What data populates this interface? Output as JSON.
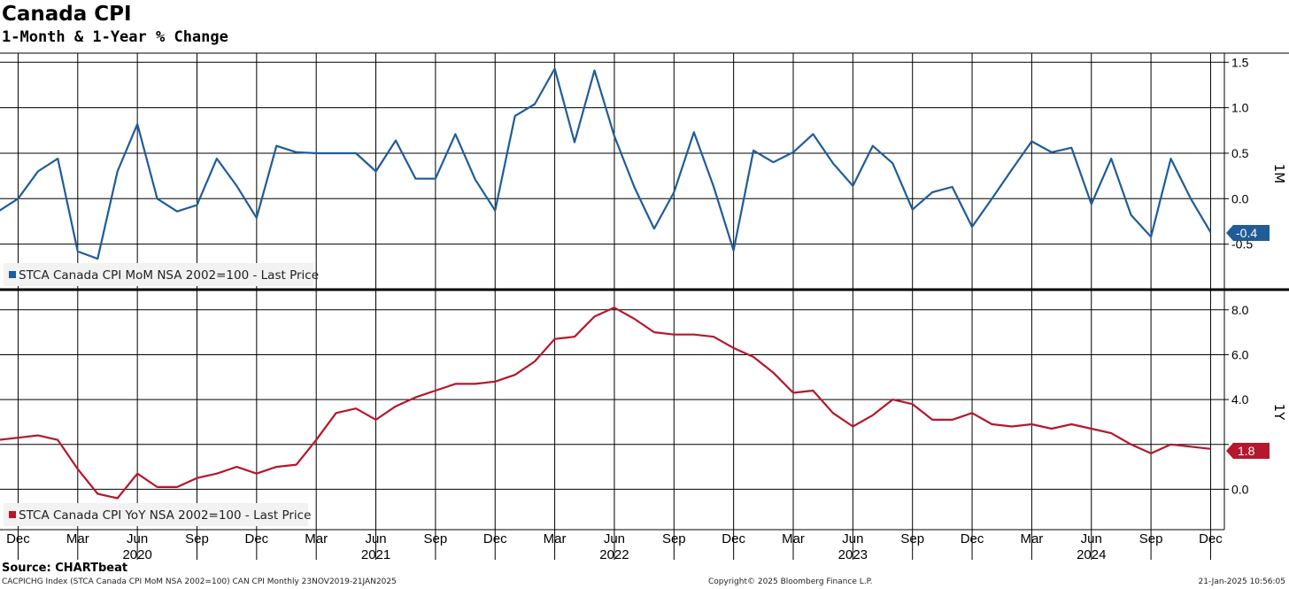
{
  "header": {
    "title": "Canada CPI",
    "subtitle": "1-Month & 1-Year % Change"
  },
  "chart_data": [
    {
      "type": "line",
      "panel": "top",
      "side_label": "1M",
      "legend": "STCA Canada CPI MoM NSA 2002=100 - Last Price",
      "last_value_label": "-0.4",
      "color": "#1f5c99",
      "ylim": [
        -1.0,
        1.6
      ],
      "yticks": [
        "-0.5",
        "0.0",
        "0.5",
        "1.0",
        "1.5"
      ],
      "grid": true,
      "x": [
        "2019-11",
        "2019-12",
        "2020-01",
        "2020-02",
        "2020-03",
        "2020-04",
        "2020-05",
        "2020-06",
        "2020-07",
        "2020-08",
        "2020-09",
        "2020-10",
        "2020-11",
        "2020-12",
        "2021-01",
        "2021-02",
        "2021-03",
        "2021-04",
        "2021-05",
        "2021-06",
        "2021-07",
        "2021-08",
        "2021-09",
        "2021-10",
        "2021-11",
        "2021-12",
        "2022-01",
        "2022-02",
        "2022-03",
        "2022-04",
        "2022-05",
        "2022-06",
        "2022-07",
        "2022-08",
        "2022-09",
        "2022-10",
        "2022-11",
        "2022-12",
        "2023-01",
        "2023-02",
        "2023-03",
        "2023-04",
        "2023-05",
        "2023-06",
        "2023-07",
        "2023-08",
        "2023-09",
        "2023-10",
        "2023-11",
        "2023-12",
        "2024-01",
        "2024-02",
        "2024-03",
        "2024-04",
        "2024-05",
        "2024-06",
        "2024-07",
        "2024-08",
        "2024-09",
        "2024-10",
        "2024-11",
        "2024-12"
      ],
      "values": [
        -0.14,
        0.0,
        0.3,
        0.44,
        -0.58,
        -0.66,
        0.3,
        0.82,
        0.0,
        -0.14,
        -0.07,
        0.44,
        0.14,
        -0.21,
        0.58,
        0.51,
        0.5,
        0.5,
        0.5,
        0.3,
        0.64,
        0.22,
        0.22,
        0.71,
        0.21,
        -0.13,
        0.91,
        1.04,
        1.43,
        0.62,
        1.41,
        0.69,
        0.13,
        -0.33,
        0.07,
        0.73,
        0.13,
        -0.57,
        0.53,
        0.4,
        0.51,
        0.71,
        0.39,
        0.14,
        0.58,
        0.39,
        -0.12,
        0.07,
        0.13,
        -0.31,
        0.0,
        0.32,
        0.63,
        0.51,
        0.56,
        -0.06,
        0.44,
        -0.18,
        -0.42,
        0.44,
        0.0,
        -0.37
      ]
    },
    {
      "type": "line",
      "panel": "bottom",
      "side_label": "1Y",
      "legend": "STCA Canada CPI YoY NSA 2002=100 - Last Price",
      "last_value_label": "1.8",
      "color": "#b5172c",
      "ylim": [
        -1.8,
        8.9
      ],
      "yticks": [
        "0.0",
        "4.0",
        "6.0",
        "8.0"
      ],
      "grid": true,
      "x": [
        "2019-11",
        "2019-12",
        "2020-01",
        "2020-02",
        "2020-03",
        "2020-04",
        "2020-05",
        "2020-06",
        "2020-07",
        "2020-08",
        "2020-09",
        "2020-10",
        "2020-11",
        "2020-12",
        "2021-01",
        "2021-02",
        "2021-03",
        "2021-04",
        "2021-05",
        "2021-06",
        "2021-07",
        "2021-08",
        "2021-09",
        "2021-10",
        "2021-11",
        "2021-12",
        "2022-01",
        "2022-02",
        "2022-03",
        "2022-04",
        "2022-05",
        "2022-06",
        "2022-07",
        "2022-08",
        "2022-09",
        "2022-10",
        "2022-11",
        "2022-12",
        "2023-01",
        "2023-02",
        "2023-03",
        "2023-04",
        "2023-05",
        "2023-06",
        "2023-07",
        "2023-08",
        "2023-09",
        "2023-10",
        "2023-11",
        "2023-12",
        "2024-01",
        "2024-02",
        "2024-03",
        "2024-04",
        "2024-05",
        "2024-06",
        "2024-07",
        "2024-08",
        "2024-09",
        "2024-10",
        "2024-11",
        "2024-12"
      ],
      "values": [
        2.2,
        2.3,
        2.4,
        2.2,
        0.9,
        -0.2,
        -0.4,
        0.7,
        0.1,
        0.1,
        0.5,
        0.7,
        1.0,
        0.7,
        1.0,
        1.1,
        2.2,
        3.4,
        3.6,
        3.1,
        3.7,
        4.1,
        4.4,
        4.7,
        4.7,
        4.8,
        5.1,
        5.7,
        6.7,
        6.8,
        7.7,
        8.1,
        7.6,
        7.0,
        6.9,
        6.9,
        6.8,
        6.3,
        5.9,
        5.2,
        4.3,
        4.4,
        3.4,
        2.8,
        3.3,
        4.0,
        3.8,
        3.1,
        3.1,
        3.4,
        2.9,
        2.8,
        2.9,
        2.7,
        2.9,
        2.7,
        2.5,
        2.0,
        1.6,
        2.0,
        1.9,
        1.8
      ]
    }
  ],
  "x_axis": {
    "month_ticks": [
      {
        "date": "2019-12",
        "label": "Dec"
      },
      {
        "date": "2020-03",
        "label": "Mar"
      },
      {
        "date": "2020-06",
        "label": "Jun"
      },
      {
        "date": "2020-09",
        "label": "Sep"
      },
      {
        "date": "2020-12",
        "label": "Dec"
      },
      {
        "date": "2021-03",
        "label": "Mar"
      },
      {
        "date": "2021-06",
        "label": "Jun"
      },
      {
        "date": "2021-09",
        "label": "Sep"
      },
      {
        "date": "2021-12",
        "label": "Dec"
      },
      {
        "date": "2022-03",
        "label": "Mar"
      },
      {
        "date": "2022-06",
        "label": "Jun"
      },
      {
        "date": "2022-09",
        "label": "Sep"
      },
      {
        "date": "2022-12",
        "label": "Dec"
      },
      {
        "date": "2023-03",
        "label": "Mar"
      },
      {
        "date": "2023-06",
        "label": "Jun"
      },
      {
        "date": "2023-09",
        "label": "Sep"
      },
      {
        "date": "2023-12",
        "label": "Dec"
      },
      {
        "date": "2024-03",
        "label": "Mar"
      },
      {
        "date": "2024-06",
        "label": "Jun"
      },
      {
        "date": "2024-09",
        "label": "Sep"
      },
      {
        "date": "2024-12",
        "label": "Dec"
      }
    ],
    "year_ticks": [
      {
        "date": "2020-06",
        "label": "2020"
      },
      {
        "date": "2021-06",
        "label": "2021"
      },
      {
        "date": "2022-06",
        "label": "2022"
      },
      {
        "date": "2023-06",
        "label": "2023"
      },
      {
        "date": "2024-06",
        "label": "2024"
      }
    ]
  },
  "footer": {
    "source": "Source: CHARTbeat",
    "left": "CACPICHG Index (STCA Canada CPI MoM NSA 2002=100) CAN CPI  Monthly 23NOV2019-21JAN2025",
    "middle": "Copyright© 2025 Bloomberg Finance L.P.",
    "right": "21-Jan-2025 10:56:05"
  }
}
